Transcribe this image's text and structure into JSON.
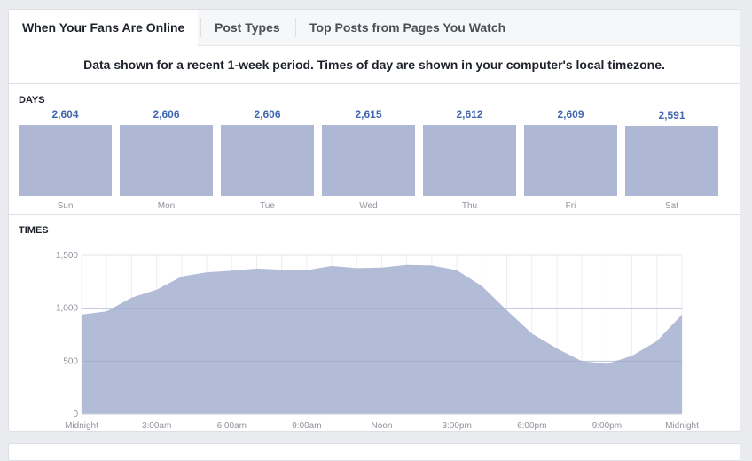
{
  "tabs": [
    {
      "label": "When Your Fans Are Online",
      "active": true
    },
    {
      "label": "Post Types",
      "active": false
    },
    {
      "label": "Top Posts from Pages You Watch",
      "active": false
    }
  ],
  "notice": "Data shown for a recent 1-week period. Times of day are shown in your computer's local timezone.",
  "days_section": {
    "label": "DAYS",
    "items": [
      {
        "day": "Sun",
        "value": "2,604",
        "count": 2604
      },
      {
        "day": "Mon",
        "value": "2,606",
        "count": 2606
      },
      {
        "day": "Tue",
        "value": "2,606",
        "count": 2606
      },
      {
        "day": "Wed",
        "value": "2,615",
        "count": 2615
      },
      {
        "day": "Thu",
        "value": "2,612",
        "count": 2612
      },
      {
        "day": "Fri",
        "value": "2,609",
        "count": 2609
      },
      {
        "day": "Sat",
        "value": "2,591",
        "count": 2591
      }
    ]
  },
  "times_section": {
    "label": "TIMES"
  },
  "colors": {
    "accent": "#4267b2",
    "bar": "#aeb8d5",
    "area": "#aeb8d5"
  },
  "chart_data": {
    "type": "area",
    "title": "",
    "xlabel": "",
    "ylabel": "",
    "ylim": [
      0,
      1500
    ],
    "y_ticks": [
      0,
      500,
      1000,
      1500
    ],
    "y_tick_labels": [
      "0",
      "500",
      "1,000",
      "1,500"
    ],
    "x_hours": [
      0,
      1,
      2,
      3,
      4,
      5,
      6,
      7,
      8,
      9,
      10,
      11,
      12,
      13,
      14,
      15,
      16,
      17,
      18,
      19,
      20,
      21,
      22,
      23,
      24
    ],
    "values": [
      940,
      970,
      1100,
      1175,
      1300,
      1340,
      1355,
      1375,
      1365,
      1360,
      1400,
      1380,
      1385,
      1410,
      1405,
      1360,
      1210,
      980,
      760,
      620,
      500,
      475,
      550,
      690,
      940
    ],
    "x_tick_hours": [
      0,
      3,
      6,
      9,
      12,
      15,
      18,
      21,
      24
    ],
    "x_tick_labels": [
      "Midnight",
      "3:00am",
      "6:00am",
      "9:00am",
      "Noon",
      "3:00pm",
      "6:00pm",
      "9:00pm",
      "Midnight"
    ],
    "grid": true
  }
}
